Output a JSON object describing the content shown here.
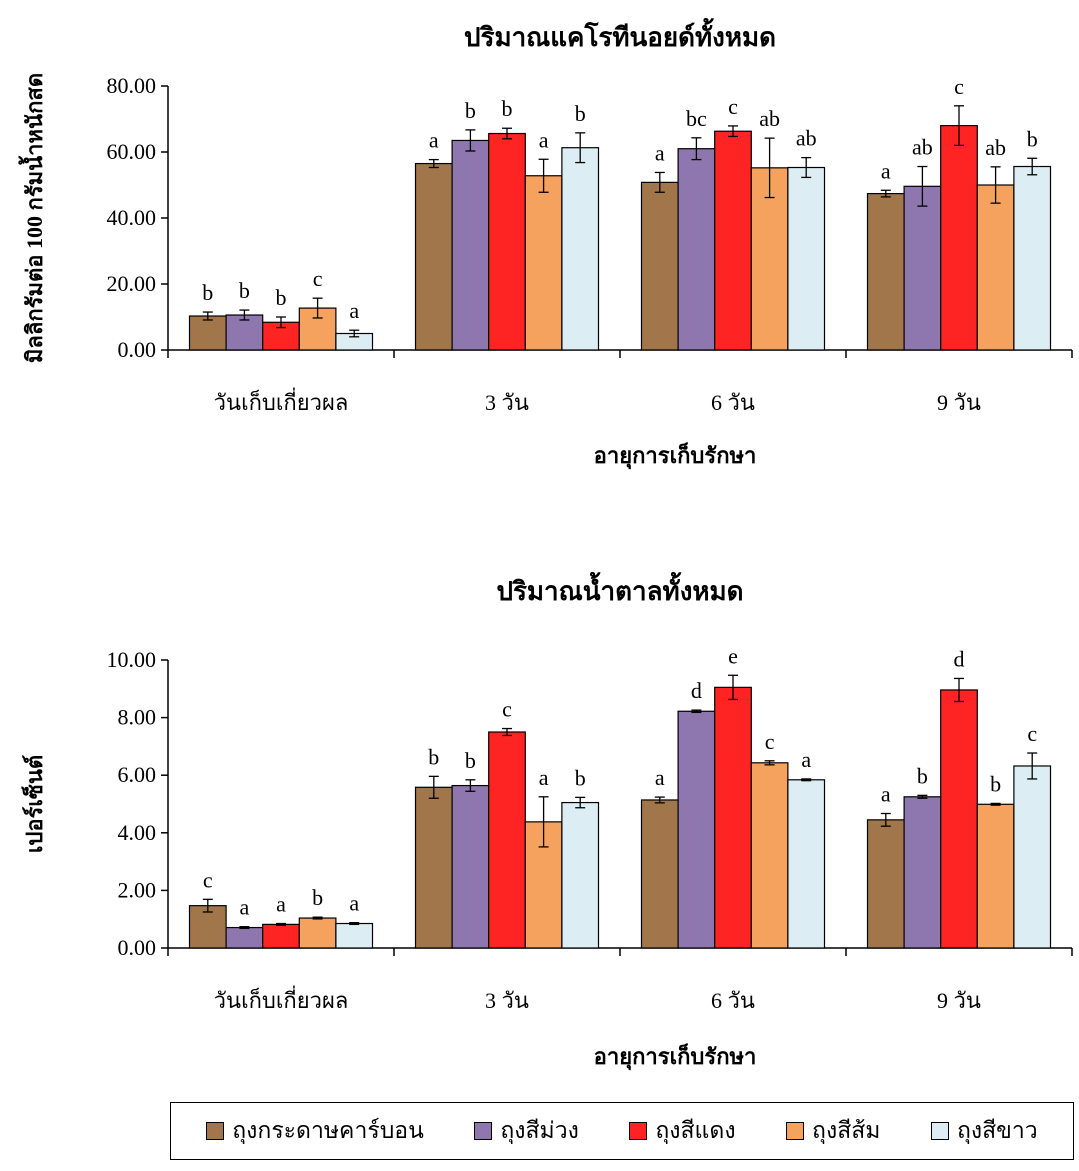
{
  "chart_data": [
    {
      "type": "bar",
      "title": "ปริมาณแคโรทีนอยด์ทั้งหมด",
      "xlabel": "อายุการเก็บรักษา",
      "ylabel": "มิลลิกรัมต่อ 100 กรัมน้ำหนักสด",
      "ylim": [
        0,
        80
      ],
      "yticks": [
        "0.00",
        "20.00",
        "40.00",
        "60.00",
        "80.00"
      ],
      "categories": [
        "วันเก็บเกี่ยวผล",
        "3 วัน",
        "6 วัน",
        "9 วัน"
      ],
      "series": [
        {
          "name": "ถุงกระดาษคาร์บอน",
          "color": "#A0764A",
          "values": [
            10.3,
            56.5,
            50.8,
            47.4
          ],
          "errors": [
            1.2,
            1.2,
            3.0,
            1.0
          ],
          "labels": [
            "b",
            "a",
            "a",
            "a"
          ]
        },
        {
          "name": "ถุงสีม่วง",
          "color": "#8E76AE",
          "values": [
            10.6,
            63.5,
            61.0,
            49.6
          ],
          "errors": [
            1.5,
            3.2,
            3.3,
            6.0
          ],
          "labels": [
            "b",
            "b",
            "bc",
            "ab"
          ]
        },
        {
          "name": "ถุงสีแดง",
          "color": "#FF2424",
          "values": [
            8.4,
            65.6,
            66.3,
            68.0
          ],
          "errors": [
            1.6,
            1.6,
            1.6,
            6.0
          ],
          "labels": [
            "b",
            "b",
            "c",
            "c"
          ]
        },
        {
          "name": "ถุงสีส้ม",
          "color": "#F5A25E",
          "values": [
            12.7,
            52.8,
            55.2,
            50.0
          ],
          "errors": [
            3.0,
            5.0,
            9.0,
            5.5
          ],
          "labels": [
            "c",
            "a",
            "ab",
            "ab"
          ]
        },
        {
          "name": "ถุงสีขาว",
          "color": "#DCEEF4",
          "values": [
            5.0,
            61.3,
            55.3,
            55.6
          ],
          "errors": [
            1.0,
            4.5,
            3.0,
            2.5
          ],
          "labels": [
            "a",
            "b",
            "ab",
            "b"
          ]
        }
      ]
    },
    {
      "type": "bar",
      "title": "ปริมาณน้ำตาลทั้งหมด",
      "xlabel": "อายุการเก็บรักษา",
      "ylabel": "เปอร์เซ็นต์",
      "ylim": [
        0,
        10
      ],
      "yticks": [
        "0.00",
        "2.00",
        "4.00",
        "6.00",
        "8.00",
        "10.00"
      ],
      "categories": [
        "วันเก็บเกี่ยวผล",
        "3 วัน",
        "6 วัน",
        "9 วัน"
      ],
      "series": [
        {
          "name": "ถุงกระดาษคาร์บอน",
          "color": "#A0764A",
          "values": [
            1.47,
            5.58,
            5.14,
            4.45
          ],
          "errors": [
            0.22,
            0.38,
            0.1,
            0.22
          ],
          "labels": [
            "c",
            "b",
            "a",
            "a"
          ]
        },
        {
          "name": "ถุงสีม่วง",
          "color": "#8E76AE",
          "values": [
            0.71,
            5.64,
            8.22,
            5.25
          ],
          "errors": [
            0.03,
            0.2,
            0.04,
            0.05
          ],
          "labels": [
            "a",
            "b",
            "d",
            "b"
          ]
        },
        {
          "name": "ถุงสีแดง",
          "color": "#FF2424",
          "values": [
            0.82,
            7.5,
            9.05,
            8.96
          ],
          "errors": [
            0.03,
            0.12,
            0.42,
            0.4
          ],
          "labels": [
            "a",
            "c",
            "e",
            "d"
          ]
        },
        {
          "name": "ถุงสีส้ม",
          "color": "#F5A25E",
          "values": [
            1.04,
            4.38,
            6.43,
            4.99
          ],
          "errors": [
            0.03,
            0.87,
            0.07,
            0.03
          ],
          "labels": [
            "b",
            "a",
            "c",
            "b"
          ]
        },
        {
          "name": "ถุงสีขาว",
          "color": "#DCEEF4",
          "values": [
            0.85,
            5.05,
            5.84,
            6.32
          ],
          "errors": [
            0.03,
            0.18,
            0.03,
            0.45
          ],
          "labels": [
            "a",
            "b",
            "a",
            "c"
          ]
        }
      ]
    }
  ],
  "legend": {
    "items": [
      {
        "label": "ถุงกระดาษคาร์บอน",
        "color": "#A0764A"
      },
      {
        "label": "ถุงสีม่วง",
        "color": "#8E76AE"
      },
      {
        "label": "ถุงสีแดง",
        "color": "#FF2424"
      },
      {
        "label": "ถุงสีส้ม",
        "color": "#F5A25E"
      },
      {
        "label": "ถุงสีขาว",
        "color": "#DCEEF4"
      }
    ]
  }
}
